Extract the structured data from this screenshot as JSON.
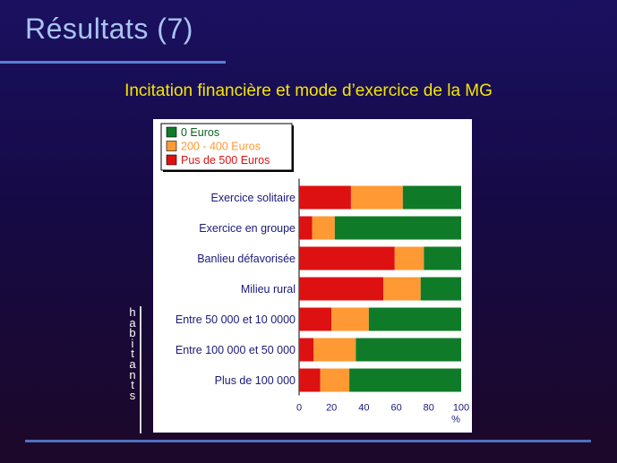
{
  "slide": {
    "title": "Résultats (7)",
    "subtitle": "Incitation financière et mode d’exercice de la MG",
    "side_label": "habitants"
  },
  "colors": {
    "series_0": "#0f7b28",
    "series_1": "#ff9933",
    "series_2": "#dd1111",
    "category_text": "#1a1a7a",
    "background": "#1a1060",
    "title": "#a9c4f2",
    "subtitle": "#f5e600"
  },
  "chart_data": {
    "type": "bar",
    "orientation": "horizontal",
    "stacked": true,
    "categories": [
      "Exercice solitaire",
      "Exercice en groupe",
      "Banlieu défavorisée",
      "Milieu rural",
      "Entre 50 000 et 10 0000",
      "Entre 100 000 et 50 000",
      "Plus de 100 000"
    ],
    "series": [
      {
        "name": "Pus de 500 Euros",
        "color": "#dd1111",
        "values": [
          32,
          8,
          59,
          52,
          20,
          9,
          13
        ]
      },
      {
        "name": "200 - 400 Euros",
        "color": "#ff9933",
        "values": [
          32,
          14,
          18,
          23,
          23,
          26,
          18
        ]
      },
      {
        "name": "0 Euros",
        "color": "#0f7b28",
        "values": [
          36,
          78,
          23,
          25,
          57,
          65,
          69
        ]
      }
    ],
    "legend_order": [
      "0 Euros",
      "200 - 400 Euros",
      "Pus de 500 Euros"
    ],
    "legend_position": "top-left",
    "x_ticks": [
      "0",
      "20",
      "40",
      "60",
      "80",
      "100"
    ],
    "x_unit": "%",
    "xlim": [
      0,
      100
    ],
    "grid": false
  }
}
